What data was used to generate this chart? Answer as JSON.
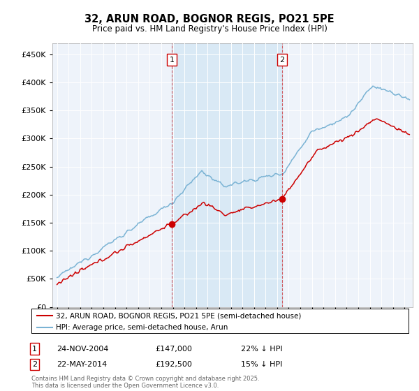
{
  "title": "32, ARUN ROAD, BOGNOR REGIS, PO21 5PE",
  "subtitle": "Price paid vs. HM Land Registry's House Price Index (HPI)",
  "ylim": [
    0,
    470000
  ],
  "yticks": [
    0,
    50000,
    100000,
    150000,
    200000,
    250000,
    300000,
    350000,
    400000,
    450000
  ],
  "hpi_color": "#7ab3d4",
  "hpi_fill_color": "#d6e8f5",
  "price_color": "#cc0000",
  "vline_color": "#cc0000",
  "marker1_year": 2004.917,
  "marker2_year": 2014.417,
  "marker1_price": 147000,
  "marker2_price": 192500,
  "marker1_label": "1",
  "marker2_label": "2",
  "marker1_date_str": "24-NOV-2004",
  "marker1_price_str": "£147,000",
  "marker1_pct_str": "22% ↓ HPI",
  "marker2_date_str": "22-MAY-2014",
  "marker2_price_str": "£192,500",
  "marker2_pct_str": "15% ↓ HPI",
  "legend_line1": "32, ARUN ROAD, BOGNOR REGIS, PO21 5PE (semi-detached house)",
  "legend_line2": "HPI: Average price, semi-detached house, Arun",
  "footer": "Contains HM Land Registry data © Crown copyright and database right 2025.\nThis data is licensed under the Open Government Licence v3.0.",
  "background_color": "#ffffff",
  "plot_bg_color": "#eef3fa",
  "grid_color": "#ffffff",
  "xstart": 1995,
  "xend": 2025
}
